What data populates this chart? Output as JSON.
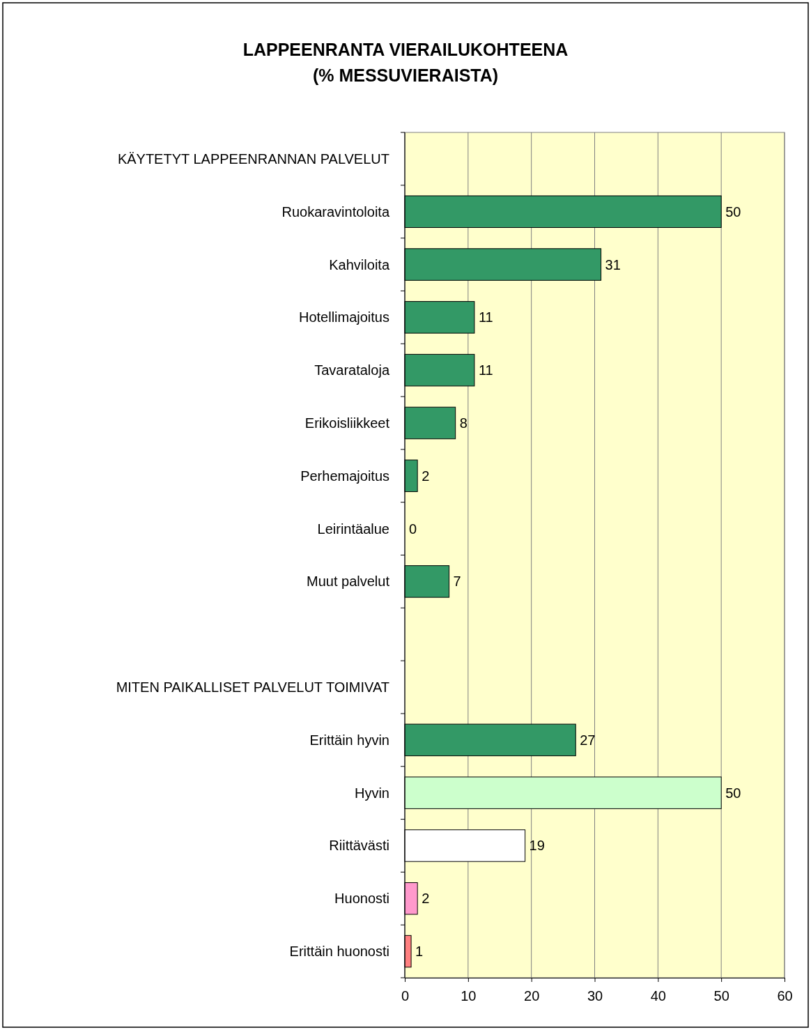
{
  "chart_data": {
    "type": "bar",
    "orientation": "horizontal",
    "title": "LAPPEENRANTA VIERAILUKOHTEENA\n(% MESSUVIERAISTA)",
    "categories": [
      "KÄYTETYT LAPPEENRANNAN PALVELUT",
      "Ruokaravintoloita",
      "Kahviloita",
      "Hotellimajoitus",
      "Tavarataloja",
      "Erikoisliikkeet",
      "Perhemajoitus",
      "Leirintäalue",
      "Muut palvelut",
      null,
      "MITEN PAIKALLISET PALVELUT TOIMIVAT",
      "Erittäin hyvin",
      "Hyvin",
      "Riittävästi",
      "Huonosti",
      "Erittäin huonosti"
    ],
    "values": [
      null,
      50,
      31,
      11,
      11,
      8,
      2,
      0,
      7,
      null,
      null,
      27,
      50,
      19,
      2,
      1
    ],
    "colors": [
      null,
      "#339966",
      "#339966",
      "#339966",
      "#339966",
      "#339966",
      "#339966",
      "#339966",
      "#339966",
      null,
      null,
      "#339966",
      "#ccffcc",
      "#ffffff",
      "#ff99cc",
      "#ff8080"
    ],
    "xlim": [
      0,
      60
    ],
    "xticks": [
      0,
      10,
      20,
      30,
      40,
      50,
      60
    ],
    "grid": "x",
    "data_labels": true
  }
}
